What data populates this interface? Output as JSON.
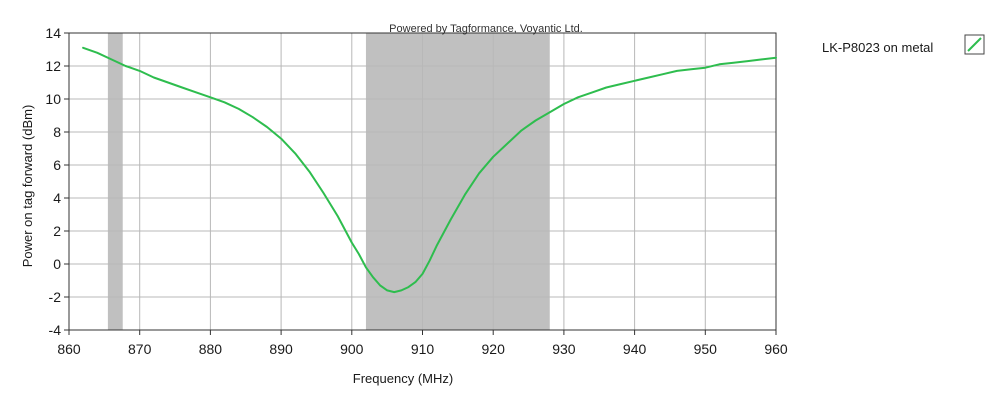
{
  "chart_data": {
    "type": "line",
    "watermark": "Powered by Tagformance, Voyantic Ltd.",
    "xlabel": "Frequency (MHz)",
    "ylabel": "Power on tag forward (dBm)",
    "xlim": [
      860,
      960
    ],
    "ylim": [
      -4,
      14
    ],
    "x_ticks": [
      860,
      870,
      880,
      890,
      900,
      910,
      920,
      930,
      940,
      950,
      960
    ],
    "y_ticks": [
      -4,
      -2,
      0,
      2,
      4,
      6,
      8,
      10,
      12,
      14
    ],
    "grid": true,
    "legend_position": "outside-right",
    "shaded_bands": [
      {
        "x_start": 865.5,
        "x_end": 867.6
      },
      {
        "x_start": 902,
        "x_end": 928
      }
    ],
    "band_color": "#c0c0c0",
    "series": [
      {
        "name": "LK-P8023 on metal",
        "color": "#2ebd4e",
        "x": [
          862,
          864,
          866,
          868,
          870,
          872,
          874,
          876,
          878,
          880,
          882,
          884,
          886,
          888,
          890,
          892,
          894,
          896,
          898,
          900,
          901,
          902,
          903,
          904,
          905,
          906,
          907,
          908,
          909,
          910,
          911,
          912,
          914,
          916,
          918,
          920,
          922,
          924,
          926,
          928,
          930,
          932,
          934,
          936,
          938,
          940,
          942,
          944,
          946,
          948,
          950,
          952,
          954,
          956,
          958,
          960
        ],
        "y": [
          13.1,
          12.8,
          12.4,
          12.0,
          11.7,
          11.3,
          11.0,
          10.7,
          10.4,
          10.1,
          9.8,
          9.4,
          8.9,
          8.3,
          7.6,
          6.7,
          5.6,
          4.3,
          2.9,
          1.3,
          0.6,
          -0.2,
          -0.8,
          -1.3,
          -1.6,
          -1.7,
          -1.6,
          -1.4,
          -1.1,
          -0.6,
          0.2,
          1.1,
          2.7,
          4.2,
          5.5,
          6.5,
          7.3,
          8.1,
          8.7,
          9.2,
          9.7,
          10.1,
          10.4,
          10.7,
          10.9,
          11.1,
          11.3,
          11.5,
          11.7,
          11.8,
          11.9,
          12.1,
          12.2,
          12.3,
          12.4,
          12.5
        ]
      }
    ]
  }
}
